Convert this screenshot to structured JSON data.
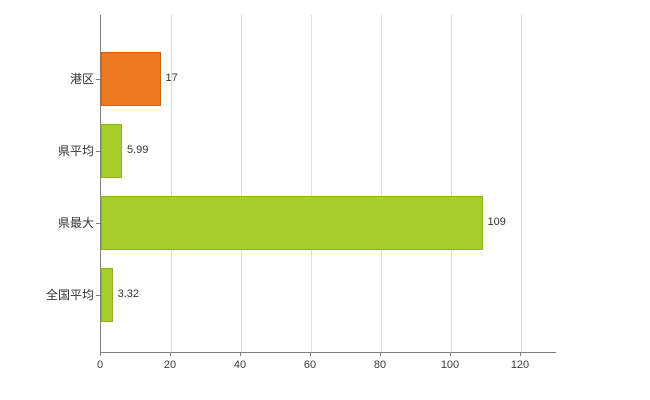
{
  "chart_data": {
    "type": "bar",
    "orientation": "horizontal",
    "title": "",
    "xlabel": "",
    "ylabel": "",
    "categories": [
      "港区",
      "県平均",
      "県最大",
      "全国平均"
    ],
    "values": [
      17,
      5.99,
      109,
      3.32
    ],
    "value_labels": [
      "17",
      "5.99",
      "109",
      "3.32"
    ],
    "bar_colors": [
      "#ed7a23",
      "#a8ce2c",
      "#a8ce2c",
      "#a8ce2c"
    ],
    "bar_border_colors": [
      "#cf6210",
      "#8db31e",
      "#8db31e",
      "#8db31e"
    ],
    "xticks": [
      "0",
      "20",
      "40",
      "60",
      "80",
      "100",
      "120"
    ],
    "xtick_values": [
      0,
      20,
      40,
      60,
      80,
      100,
      120
    ],
    "xlim": [
      0,
      130
    ],
    "grid": true,
    "legend": "none"
  },
  "colors": {
    "grid": "#dcdcdc",
    "axis": "#7f7f7f",
    "background": "#ffffff",
    "text": "#333333"
  }
}
